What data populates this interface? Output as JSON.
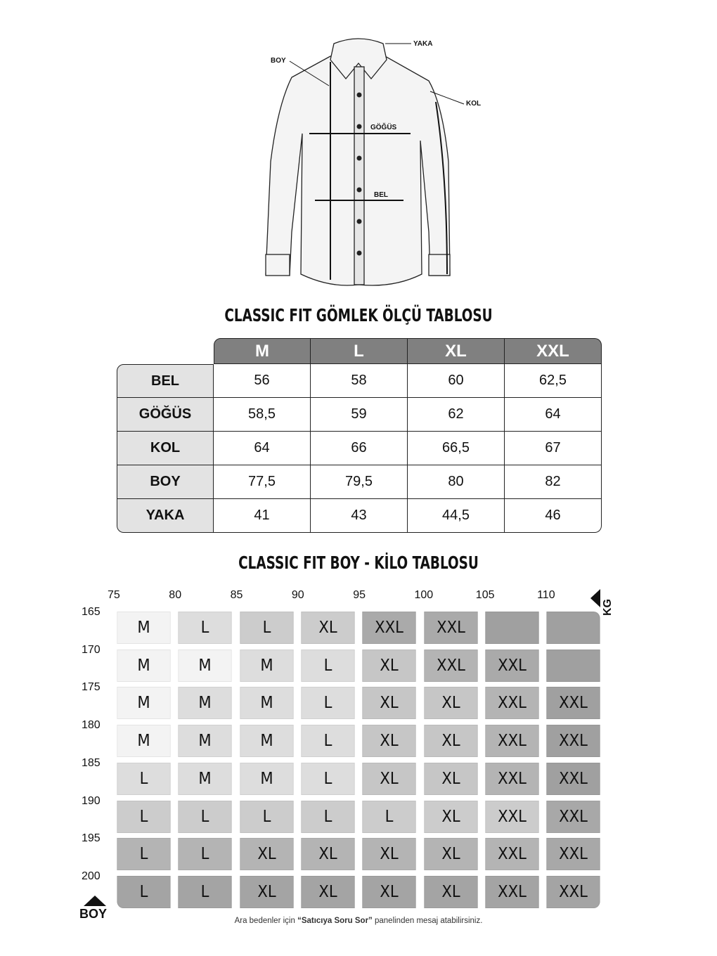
{
  "diagram_labels": {
    "yaka": "YAKA",
    "boy": "BOY",
    "kol": "KOL",
    "gogus": "GÖĞÜS",
    "bel": "BEL"
  },
  "measure_table": {
    "title": "CLASSIC FIT GÖMLEK ÖLÇÜ TABLOSU",
    "sizes": [
      "M",
      "L",
      "XL",
      "XXL"
    ],
    "rows": [
      {
        "label": "BEL",
        "values": [
          "56",
          "58",
          "60",
          "62,5"
        ]
      },
      {
        "label": "GÖĞÜS",
        "values": [
          "58,5",
          "59",
          "62",
          "64"
        ]
      },
      {
        "label": "KOL",
        "values": [
          "64",
          "66",
          "66,5",
          "67"
        ]
      },
      {
        "label": "BOY",
        "values": [
          "77,5",
          "79,5",
          "80",
          "82"
        ]
      },
      {
        "label": "YAKA",
        "values": [
          "41",
          "43",
          "44,5",
          "46"
        ]
      }
    ]
  },
  "boy_kilo_table": {
    "title": "CLASSIC FIT BOY - KİLO TABLOSU",
    "kg_label": "KG",
    "boy_label": "BOY",
    "kg_ticks": [
      "75",
      "80",
      "85",
      "90",
      "95",
      "100",
      "105",
      "110"
    ],
    "boy_ticks": [
      "165",
      "170",
      "175",
      "180",
      "185",
      "190",
      "195",
      "200"
    ],
    "rows": [
      [
        "M",
        "L",
        "L",
        "XL",
        "XXL",
        "XXL",
        "",
        ""
      ],
      [
        "M",
        "M",
        "M",
        "L",
        "XL",
        "XXL",
        "XXL",
        ""
      ],
      [
        "M",
        "M",
        "M",
        "L",
        "XL",
        "XL",
        "XXL",
        "XXL"
      ],
      [
        "M",
        "M",
        "M",
        "L",
        "XL",
        "XL",
        "XXL",
        "XXL"
      ],
      [
        "L",
        "M",
        "M",
        "L",
        "XL",
        "XL",
        "XXL",
        "XXL"
      ],
      [
        "L",
        "L",
        "L",
        "L",
        "L",
        "XL",
        "XXL",
        "XXL"
      ],
      [
        "L",
        "L",
        "XL",
        "XL",
        "XL",
        "XL",
        "XXL",
        "XXL"
      ],
      [
        "L",
        "L",
        "XL",
        "XL",
        "XL",
        "XL",
        "XXL",
        "XXL"
      ]
    ]
  },
  "note": {
    "prefix": "Ara bedenler için ",
    "bold": "“Satıcıya Soru Sor”",
    "suffix": " panelinden mesaj atabilirsiniz."
  }
}
